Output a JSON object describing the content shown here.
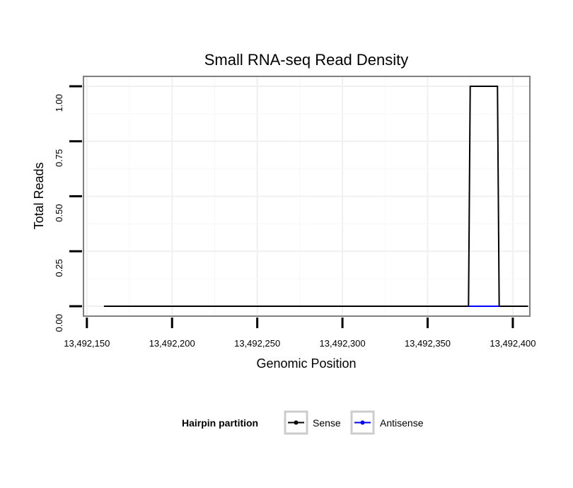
{
  "chart_data": {
    "type": "line",
    "title": "Small RNA-seq Read Density",
    "xlabel": "Genomic Position",
    "ylabel": "Total Reads",
    "xlim": [
      13492148,
      13492410
    ],
    "ylim": [
      -0.045,
      1.045
    ],
    "x_ticks": [
      13492150,
      13492200,
      13492250,
      13492300,
      13492350,
      13492400
    ],
    "x_tick_labels": [
      "13,492,150",
      "13,492,200",
      "13,492,250",
      "13,492,300",
      "13,492,350",
      "13,492,400"
    ],
    "y_ticks": [
      0,
      0.25,
      0.5,
      0.75,
      1.0
    ],
    "y_tick_labels": [
      "0.00",
      "0.25",
      "0.50",
      "0.75",
      "1.00"
    ],
    "grid": true,
    "legend": {
      "title": "Hairpin partition",
      "position": "bottom",
      "entries": [
        "Sense",
        "Antisense"
      ]
    },
    "series": [
      {
        "name": "Sense",
        "color": "#000000",
        "x": [
          13492160,
          13492374,
          13492375,
          13492391,
          13492392,
          13492409
        ],
        "y": [
          0,
          0,
          1,
          1,
          0,
          0
        ]
      },
      {
        "name": "Antisense",
        "color": "#0000ff",
        "x": [
          13492374,
          13492392
        ],
        "y": [
          0,
          0
        ]
      }
    ]
  }
}
